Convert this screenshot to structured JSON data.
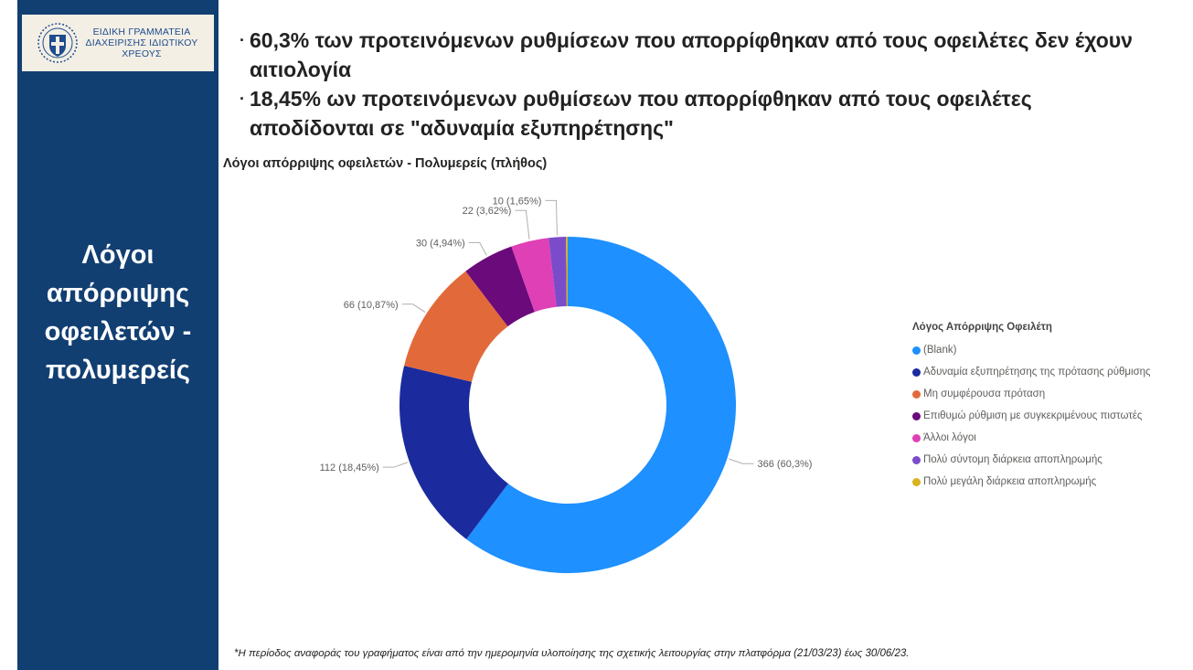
{
  "logo": {
    "line1": "ΕΙΔΙΚΗ ΓΡΑΜΜΑΤΕΙΑ",
    "line2": "ΔΙΑΧΕΙΡΙΣΗΣ ΙΔΙΩΤΙΚΟΥ",
    "line3": "ΧΡΕΟΥΣ"
  },
  "sidebar": {
    "title_lines": [
      "Λόγοι",
      "απόρριψης",
      "οφειλετών -",
      "πολυμερείς"
    ]
  },
  "bullets": [
    {
      "marker": "·",
      "text": "60,3% των προτεινόμενων ρυθμίσεων που απορρίφθηκαν από τους οφειλέτες δεν έχουν αιτιολογία"
    },
    {
      "marker": "·",
      "text": "18,45% ων προτεινόμενων ρυθμίσεων που απορρίφθηκαν από τους οφειλέτες αποδίδονται σε \"αδυναμία εξυπηρέτησης\""
    }
  ],
  "chart_data": {
    "type": "pie",
    "variant": "donut",
    "title": "Λόγοι απόρριψης οφειλετών - Πολυμερείς (πλήθος)",
    "legend_title": "Λόγος Απόρριψης Οφειλέτη",
    "legend_position": "right",
    "slices": [
      {
        "name": "(Blank)",
        "value": 366,
        "label": "366 (60,3%)",
        "color": "#1e90ff"
      },
      {
        "name": "Αδυναμία εξυπηρέτησης της πρότασης ρύθμισης",
        "value": 112,
        "label": "112 (18,45%)",
        "color": "#1b2a9c"
      },
      {
        "name": "Μη συμφέρουσα πρόταση",
        "value": 66,
        "label": "66 (10,87%)",
        "color": "#e26a3a"
      },
      {
        "name": "Επιθυμώ ρύθμιση με συγκεκριμένους πιστωτές",
        "value": 30,
        "label": "30 (4,94%)",
        "color": "#6b0a7a"
      },
      {
        "name": "Άλλοι λόγοι",
        "value": 22,
        "label": "22 (3,62%)",
        "color": "#e040b5"
      },
      {
        "name": "Πολύ σύντομη διάρκεια αποπληρωμής",
        "value": 10,
        "label": "10 (1,65%)",
        "color": "#7b4cc9"
      },
      {
        "name": "Πολύ μεγάλη διάρκεια αποπληρωμής",
        "value": 1,
        "label": "",
        "color": "#d9b31f"
      }
    ]
  },
  "footnote": "*Η περίοδος αναφοράς του γραφήματος είναι από την ημερομηνία υλοποίησης της σχετικής λειτουργίας στην πλατφόρμα (21/03/23) έως 30/06/23."
}
